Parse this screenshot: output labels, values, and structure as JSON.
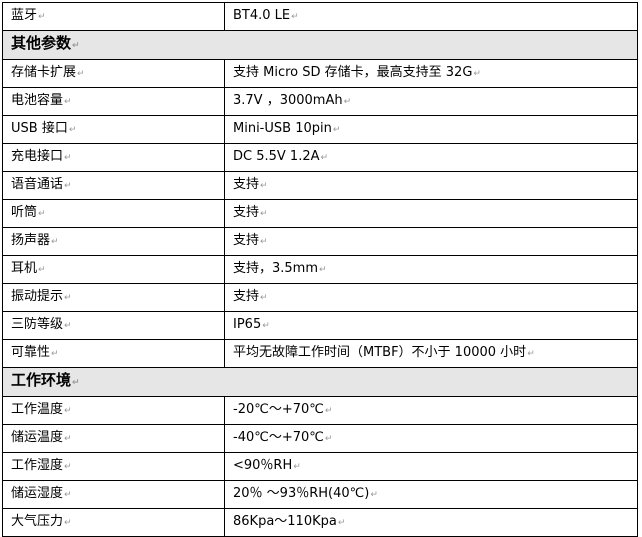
{
  "rows": [
    {
      "type": "row",
      "label": "蓝牙",
      "value": "BT4.0 LE"
    },
    {
      "type": "section",
      "label": "其他参数"
    },
    {
      "type": "row",
      "label": "存储卡扩展",
      "value": "支持 Micro SD 存储卡，最高支持至 32G"
    },
    {
      "type": "row",
      "label": "电池容量",
      "value": "3.7V ，3000mAh"
    },
    {
      "type": "row",
      "label": "USB 接口",
      "value": "Mini-USB 10pin"
    },
    {
      "type": "row",
      "label": "充电接口",
      "value": "DC 5.5V 1.2A"
    },
    {
      "type": "row",
      "label": "语音通话",
      "value": "支持"
    },
    {
      "type": "row",
      "label": "听筒",
      "value": "支持"
    },
    {
      "type": "row",
      "label": "扬声器",
      "value": "支持"
    },
    {
      "type": "row",
      "label": "耳机",
      "value": "支持，3.5mm"
    },
    {
      "type": "row",
      "label": "振动提示",
      "value": "支持"
    },
    {
      "type": "row",
      "label": "三防等级",
      "value": "IP65"
    },
    {
      "type": "row",
      "label": "可靠性",
      "value": "平均无故障工作时间（MTBF）不小于 10000 小时"
    },
    {
      "type": "section",
      "label": "工作环境"
    },
    {
      "type": "row",
      "label": "工作温度",
      "value": "-20℃～+70℃"
    },
    {
      "type": "row",
      "label": "储运温度",
      "value": "-40℃～+70℃"
    },
    {
      "type": "row",
      "label": "工作湿度",
      "value": "<90％RH"
    },
    {
      "type": "row",
      "label": "储运湿度",
      "value": "20％ ～93％RH(40℃)"
    },
    {
      "type": "row",
      "label": "大气压力",
      "value": "86Kpa～110Kpa"
    }
  ]
}
